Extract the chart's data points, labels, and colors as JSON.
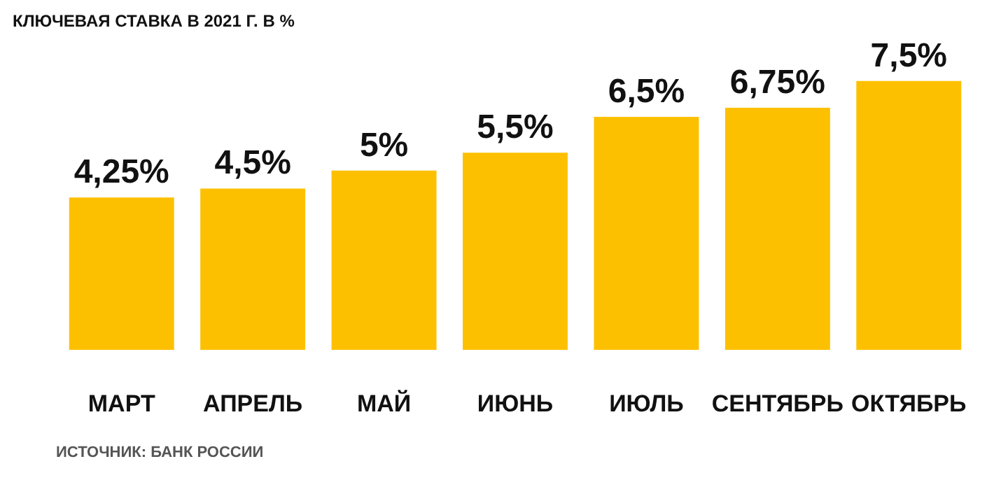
{
  "chart_data": {
    "type": "bar",
    "title": "КЛЮЧЕВАЯ СТАВКА В 2021 Г. В %",
    "categories": [
      "МАРТ",
      "АПРЕЛЬ",
      "МАЙ",
      "ИЮНЬ",
      "ИЮЛЬ",
      "СЕНТЯБРЬ",
      "ОКТЯБРЬ"
    ],
    "values": [
      4.25,
      4.5,
      5,
      5.5,
      6.5,
      6.75,
      7.5
    ],
    "value_labels": [
      "4,25%",
      "4,5%",
      "5%",
      "5,5%",
      "6,5%",
      "6,75%",
      "7,5%"
    ],
    "color": "#fdc000",
    "annotations": [
      "ИСТОЧНИК: БАНК РОССИИ"
    ]
  }
}
